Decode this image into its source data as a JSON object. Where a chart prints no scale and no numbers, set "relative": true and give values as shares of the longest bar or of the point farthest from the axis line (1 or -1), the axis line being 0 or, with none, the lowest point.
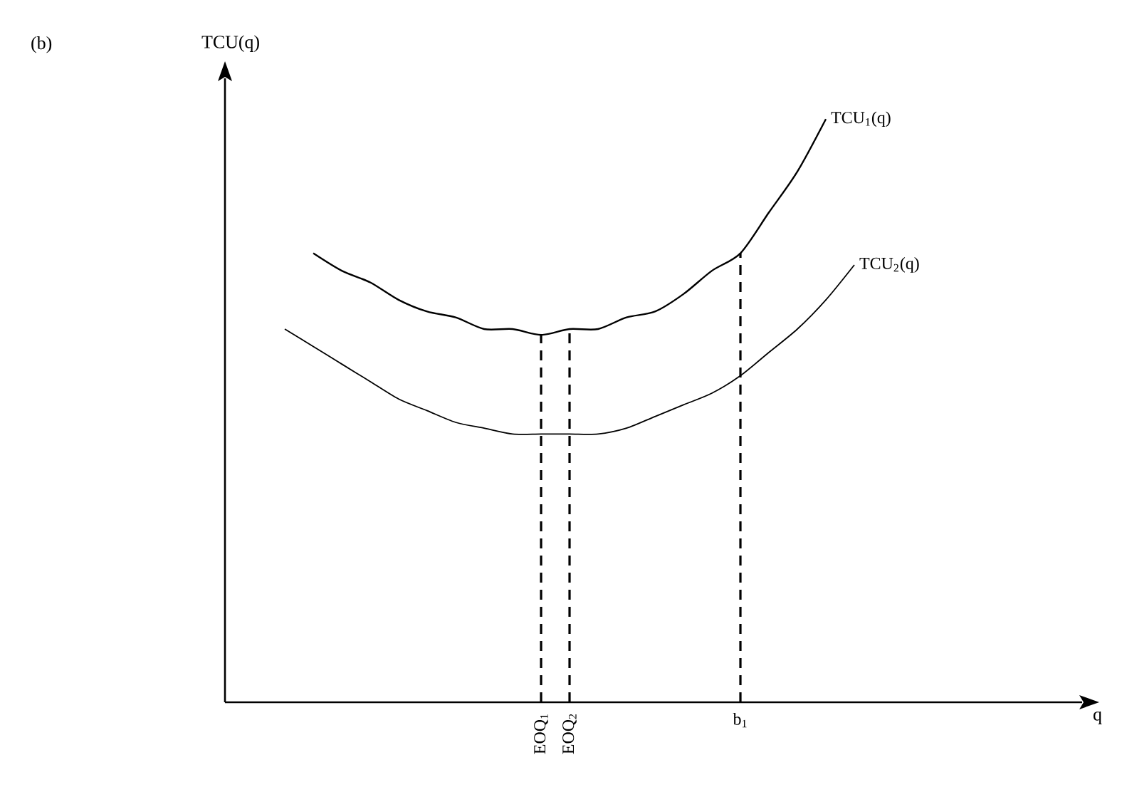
{
  "chart_data": {
    "type": "line",
    "relative": true,
    "title": "(b)",
    "ylabel": "TCU(q)",
    "annotations": [
      "q"
    ],
    "grid": false,
    "legend": false,
    "tick_labels": "x",
    "marker": "none",
    "line_style": "solid",
    "categories": [
      null,
      null,
      null,
      null,
      null,
      null,
      null,
      null,
      null,
      "EOQ$_{1}$",
      "EOQ$_{2}$",
      null,
      null,
      null,
      null,
      null,
      "b$_{1}$",
      null,
      null,
      null,
      null
    ],
    "series": [
      {
        "name": "TCU$_{1}$(q)",
        "color": "#000000",
        "values": [
          null,
          0.77,
          0.74,
          0.72,
          0.69,
          0.67,
          0.66,
          0.64,
          0.64,
          0.63,
          0.64,
          0.64,
          0.66,
          0.67,
          0.7,
          0.74,
          0.77,
          0.84,
          0.91,
          1.0,
          null
        ]
      },
      {
        "name": "TCU$_{2}$(q)",
        "color": "#000000",
        "values": [
          0.64,
          0.61,
          0.58,
          0.55,
          0.52,
          0.5,
          0.48,
          0.47,
          0.46,
          0.46,
          0.46,
          0.46,
          0.47,
          0.49,
          0.51,
          0.53,
          0.56,
          0.6,
          0.64,
          0.69,
          0.75
        ]
      }
    ],
    "ref_lines": [
      {
        "axis": "x",
        "value": "EOQ$_{1}$",
        "line_style": "dashed"
      },
      {
        "axis": "x",
        "value": "EOQ$_{2}$",
        "line_style": "dashed"
      },
      {
        "axis": "x",
        "value": "b$_{1}$",
        "line_style": "dashed"
      }
    ]
  }
}
